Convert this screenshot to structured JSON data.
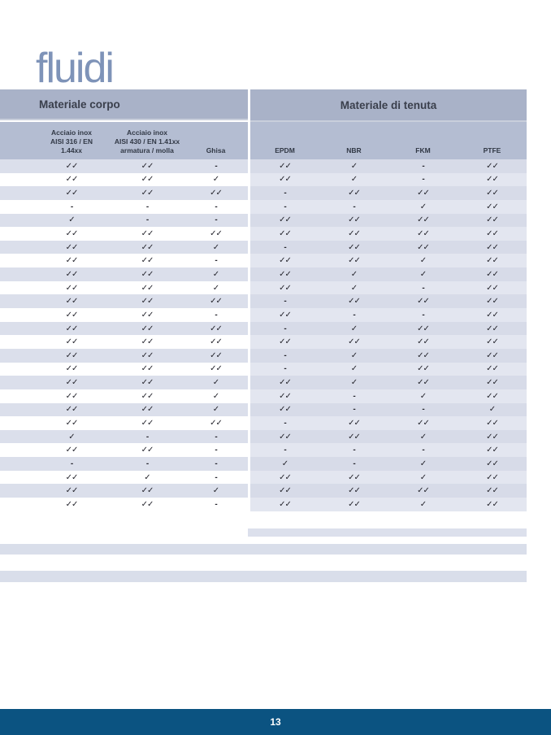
{
  "page": {
    "title": "fluidi",
    "page_number": "13"
  },
  "table": {
    "group_headers": {
      "corpo": "Materiale corpo",
      "tenuta": "Materiale di tenuta"
    },
    "column_headers": [
      "Acciaio inox\nAISI 316 /  EN\n1.44xx",
      "Acciaio inox\nAISI 430 / EN 1.41xx\narmatura / molla",
      "Ghisa",
      "EPDM",
      "NBR",
      "FKM",
      "PTFE"
    ],
    "rows": [
      [
        "✓✓",
        "✓✓",
        "-",
        "✓✓",
        "✓",
        "-",
        "✓✓"
      ],
      [
        "✓✓",
        "✓✓",
        "✓",
        "✓✓",
        "✓",
        "-",
        "✓✓"
      ],
      [
        "✓✓",
        "✓✓",
        "✓✓",
        "-",
        "✓✓",
        "✓✓",
        "✓✓"
      ],
      [
        "-",
        "-",
        "-",
        "-",
        "-",
        "✓",
        "✓✓"
      ],
      [
        "✓",
        "-",
        "-",
        "✓✓",
        "✓✓",
        "✓✓",
        "✓✓"
      ],
      [
        "✓✓",
        "✓✓",
        "✓✓",
        "✓✓",
        "✓✓",
        "✓✓",
        "✓✓"
      ],
      [
        "✓✓",
        "✓✓",
        "✓",
        "-",
        "✓✓",
        "✓✓",
        "✓✓"
      ],
      [
        "✓✓",
        "✓✓",
        "-",
        "✓✓",
        "✓✓",
        "✓",
        "✓✓"
      ],
      [
        "✓✓",
        "✓✓",
        "✓",
        "✓✓",
        "✓",
        "✓",
        "✓✓"
      ],
      [
        "✓✓",
        "✓✓",
        "✓",
        "✓✓",
        "✓",
        "-",
        "✓✓"
      ],
      [
        "✓✓",
        "✓✓",
        "✓✓",
        "-",
        "✓✓",
        "✓✓",
        "✓✓"
      ],
      [
        "✓✓",
        "✓✓",
        "-",
        "✓✓",
        "-",
        "-",
        "✓✓"
      ],
      [
        "✓✓",
        "✓✓",
        "✓✓",
        "-",
        "✓",
        "✓✓",
        "✓✓"
      ],
      [
        "✓✓",
        "✓✓",
        "✓✓",
        "✓✓",
        "✓✓",
        "✓✓",
        "✓✓"
      ],
      [
        "✓✓",
        "✓✓",
        "✓✓",
        "-",
        "✓",
        "✓✓",
        "✓✓"
      ],
      [
        "✓✓",
        "✓✓",
        "✓✓",
        "-",
        "✓",
        "✓✓",
        "✓✓"
      ],
      [
        "✓✓",
        "✓✓",
        "✓",
        "✓✓",
        "✓",
        "✓✓",
        "✓✓"
      ],
      [
        "✓✓",
        "✓✓",
        "✓",
        "✓✓",
        "-",
        "✓",
        "✓✓"
      ],
      [
        "✓✓",
        "✓✓",
        "✓",
        "✓✓",
        "-",
        "-",
        "✓"
      ],
      [
        "✓✓",
        "✓✓",
        "✓✓",
        "-",
        "✓✓",
        "✓✓",
        "✓✓"
      ],
      [
        "✓",
        "-",
        "-",
        "✓✓",
        "✓✓",
        "✓",
        "✓✓"
      ],
      [
        "✓✓",
        "✓✓",
        "-",
        "-",
        "-",
        "-",
        "✓✓"
      ],
      [
        "-",
        "-",
        "-",
        "✓",
        "-",
        "✓",
        "✓✓"
      ],
      [
        "✓✓",
        "✓",
        "-",
        "✓✓",
        "✓✓",
        "✓",
        "✓✓"
      ],
      [
        "✓✓",
        "✓✓",
        "✓",
        "✓✓",
        "✓✓",
        "✓✓",
        "✓✓"
      ],
      [
        "✓✓",
        "✓✓",
        "-",
        "✓✓",
        "✓✓",
        "✓",
        "✓✓"
      ]
    ]
  },
  "colors": {
    "title": "#7e93b8",
    "groupBand": "#a9b2c8",
    "subBand": "#b4bdd2",
    "hdrDivider": "#c9cfdc",
    "headerText": "#3a3f4c",
    "subText": "#313845",
    "leftOdd": "#dbdfeb",
    "rightOdd": "#d7dbe8",
    "rightEven": "#e3e6f0",
    "mark": "#26262e",
    "stripeRight": "#dce0ec",
    "stripeFull": "#d9deea",
    "footerBg": "#0b5381",
    "footerText": "#ffffff"
  }
}
